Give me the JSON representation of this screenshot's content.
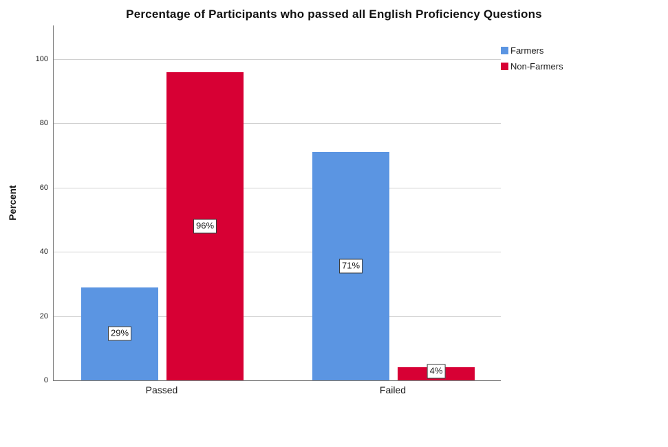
{
  "window": {
    "background": "#ffffff"
  },
  "chart_data": {
    "type": "bar",
    "title": "Percentage of Participants who passed all English Proficiency Questions",
    "categories": [
      "Passed",
      "Failed"
    ],
    "series": [
      {
        "name": "Farmers",
        "color": "#5B95E2",
        "values": [
          29,
          71
        ],
        "value_labels": [
          "29%",
          "71%"
        ]
      },
      {
        "name": "Non-Farmers",
        "color": "#D70034",
        "values": [
          96,
          4
        ],
        "value_labels": [
          "96%",
          "4%"
        ]
      }
    ],
    "xlabel": "",
    "ylabel": "Percent",
    "yticks": [
      0,
      20,
      40,
      60,
      80,
      100
    ],
    "ytick_labels": [
      "0",
      "20",
      "40",
      "60",
      "80",
      "100"
    ],
    "ylim": [
      0,
      110.5
    ],
    "grid": true,
    "legend_position": "top-right",
    "colors": {
      "gridline": "#d0d0d0",
      "axis": "#7a7a7a",
      "text": "#1a1a1a",
      "value_label_background": "#ffffff",
      "value_label_border": "#3a3a3a"
    }
  }
}
